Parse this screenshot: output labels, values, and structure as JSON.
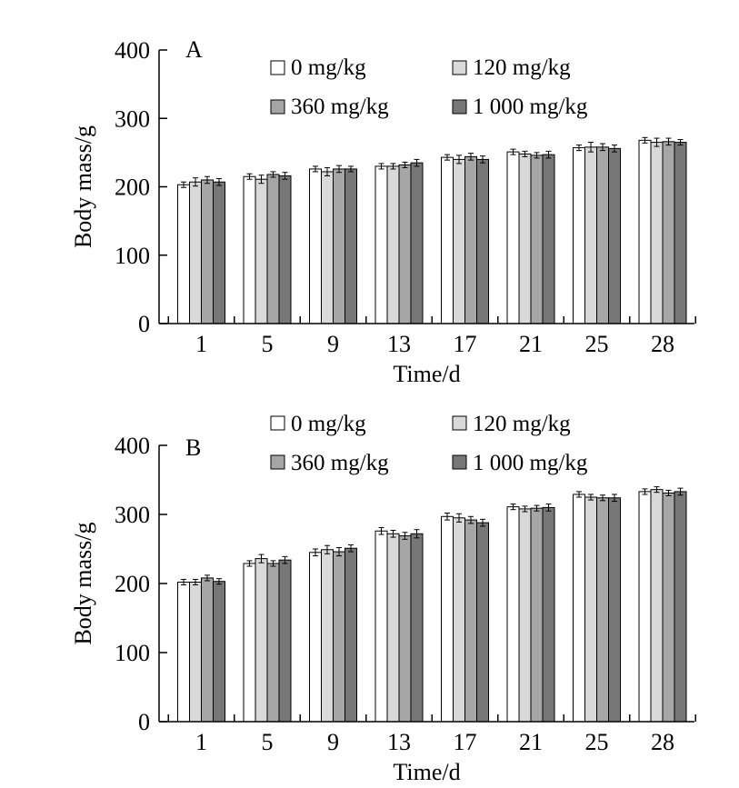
{
  "chart_data": [
    {
      "type": "bar",
      "panel_label": "A",
      "xlabel": "Time/d",
      "ylabel": "Body mass/g",
      "categories": [
        "1",
        "5",
        "9",
        "13",
        "17",
        "21",
        "25",
        "28"
      ],
      "ylim": [
        0,
        400
      ],
      "yticks": [
        0,
        100,
        200,
        300,
        400
      ],
      "legend_position": "top",
      "series": [
        {
          "name": "0 mg/kg",
          "color": "#ffffff",
          "values": [
            203,
            215,
            226,
            230,
            243,
            251,
            257,
            268
          ],
          "errors": [
            4,
            4,
            4,
            4,
            4,
            4,
            4,
            4
          ]
        },
        {
          "name": "120 mg/kg",
          "color": "#d9d9d9",
          "values": [
            207,
            211,
            222,
            230,
            240,
            248,
            258,
            265
          ],
          "errors": [
            6,
            6,
            6,
            4,
            6,
            4,
            7,
            6
          ]
        },
        {
          "name": "360 mg/kg",
          "color": "#a6a6a6",
          "values": [
            210,
            218,
            226,
            232,
            244,
            246,
            258,
            266
          ],
          "errors": [
            5,
            4,
            5,
            4,
            5,
            4,
            5,
            5
          ]
        },
        {
          "name": "1 000 mg/kg",
          "color": "#777777",
          "values": [
            207,
            216,
            226,
            235,
            240,
            247,
            256,
            265
          ],
          "errors": [
            5,
            5,
            4,
            5,
            5,
            5,
            5,
            4
          ]
        }
      ]
    },
    {
      "type": "bar",
      "panel_label": "B",
      "xlabel": "Time/d",
      "ylabel": "Body mass/g",
      "categories": [
        "1",
        "5",
        "9",
        "13",
        "17",
        "21",
        "25",
        "28"
      ],
      "ylim": [
        0,
        400
      ],
      "yticks": [
        0,
        100,
        200,
        300,
        400
      ],
      "legend_position": "top",
      "series": [
        {
          "name": "0 mg/kg",
          "color": "#ffffff",
          "values": [
            202,
            229,
            245,
            276,
            297,
            311,
            329,
            333
          ],
          "errors": [
            4,
            4,
            5,
            5,
            5,
            4,
            4,
            4
          ]
        },
        {
          "name": "120 mg/kg",
          "color": "#d9d9d9",
          "values": [
            202,
            236,
            249,
            272,
            295,
            308,
            325,
            336
          ],
          "errors": [
            4,
            6,
            6,
            5,
            6,
            4,
            4,
            4
          ]
        },
        {
          "name": "360 mg/kg",
          "color": "#a6a6a6",
          "values": [
            208,
            229,
            246,
            269,
            292,
            309,
            324,
            331
          ],
          "errors": [
            4,
            4,
            6,
            5,
            5,
            4,
            4,
            4
          ]
        },
        {
          "name": "1 000 mg/kg",
          "color": "#777777",
          "values": [
            203,
            234,
            251,
            272,
            288,
            310,
            324,
            333
          ],
          "errors": [
            4,
            5,
            5,
            6,
            5,
            5,
            5,
            5
          ]
        }
      ]
    }
  ]
}
